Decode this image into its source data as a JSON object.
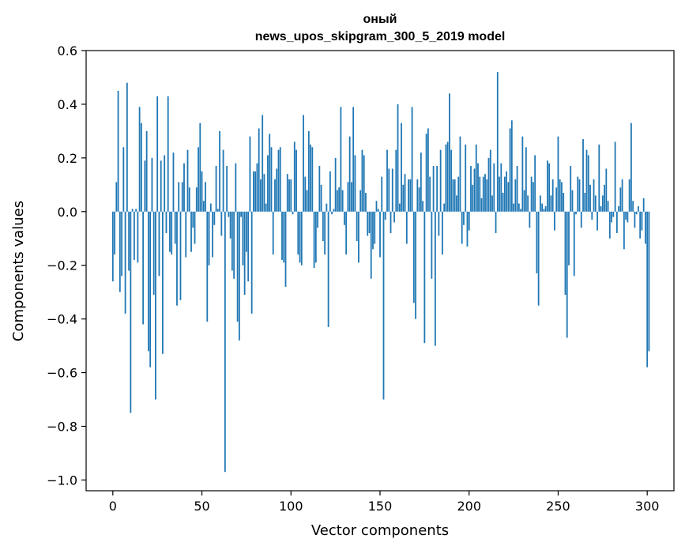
{
  "chart_data": {
    "type": "bar",
    "title": "оный",
    "subtitle": "news_upos_skipgram_300_5_2019 model",
    "xlabel": "Vector components",
    "ylabel": "Components values",
    "xlim": [
      -15,
      315
    ],
    "ylim": [
      -1.04,
      0.6
    ],
    "xticks": [
      0,
      50,
      100,
      150,
      200,
      250,
      300
    ],
    "yticks": [
      0.6,
      0.4,
      0.2,
      0.0,
      -0.2,
      -0.4,
      -0.6,
      -0.8,
      -1.0
    ],
    "xtick_labels": [
      "0",
      "50",
      "100",
      "150",
      "200",
      "250",
      "300"
    ],
    "ytick_labels": [
      "0.6",
      "0.4",
      "0.2",
      "0.0",
      "−0.2",
      "−0.4",
      "−0.6",
      "−0.8",
      "−1.0"
    ],
    "grid": false,
    "color": "#1f77b4",
    "values": [
      -0.26,
      -0.16,
      0.11,
      0.45,
      -0.3,
      -0.24,
      0.24,
      -0.38,
      0.48,
      -0.22,
      -0.75,
      0.01,
      -0.18,
      0.01,
      -0.19,
      0.39,
      0.33,
      -0.42,
      0.19,
      0.3,
      -0.52,
      -0.58,
      0.2,
      -0.31,
      -0.7,
      0.43,
      -0.24,
      0.19,
      -0.53,
      0.21,
      -0.08,
      0.43,
      -0.15,
      -0.16,
      0.22,
      -0.12,
      -0.35,
      0.11,
      -0.33,
      0.11,
      0.18,
      -0.17,
      0.23,
      0.09,
      -0.15,
      -0.06,
      -0.12,
      0.09,
      0.24,
      0.33,
      0.15,
      0.04,
      0.11,
      -0.41,
      -0.2,
      0.03,
      -0.17,
      -0.05,
      0.17,
      0.01,
      0.3,
      -0.09,
      0.23,
      -0.97,
      0.17,
      -0.02,
      -0.1,
      -0.22,
      -0.25,
      0.18,
      -0.41,
      -0.48,
      -0.02,
      -0.2,
      -0.31,
      -0.15,
      -0.26,
      0.28,
      -0.38,
      0.15,
      0.15,
      0.18,
      0.31,
      0.12,
      0.36,
      0.14,
      0.03,
      0.21,
      0.29,
      0.24,
      -0.16,
      0.12,
      0.16,
      0.23,
      0.24,
      -0.18,
      -0.19,
      -0.28,
      0.14,
      0.12,
      0.12,
      -0.01,
      0.26,
      0.23,
      -0.16,
      -0.19,
      -0.2,
      0.36,
      0.13,
      0.08,
      0.3,
      0.25,
      0.24,
      -0.21,
      -0.19,
      -0.06,
      0.17,
      0.1,
      -0.11,
      -0.16,
      0.03,
      -0.43,
      0.15,
      -0.01,
      0.01,
      0.2,
      0.08,
      0.09,
      0.39,
      0.08,
      -0.05,
      -0.16,
      0.11,
      0.28,
      0.11,
      0.39,
      0.21,
      -0.11,
      -0.19,
      0.08,
      0.23,
      0.21,
      0.07,
      -0.09,
      -0.08,
      -0.25,
      -0.14,
      -0.12,
      0.04,
      0.01,
      -0.17,
      0.13,
      -0.7,
      -0.03,
      0.23,
      0.16,
      -0.08,
      0.16,
      -0.04,
      0.23,
      0.4,
      0.03,
      0.33,
      0.1,
      0.14,
      -0.12,
      0.12,
      0.12,
      0.39,
      -0.34,
      -0.4,
      0.12,
      0.09,
      0.22,
      0.04,
      -0.49,
      0.29,
      0.31,
      0.13,
      -0.25,
      0.17,
      -0.5,
      0.17,
      -0.09,
      0.23,
      -0.16,
      0.03,
      0.25,
      0.26,
      0.44,
      0.23,
      0.12,
      0.12,
      0.06,
      0.13,
      0.28,
      -0.12,
      -0.05,
      0.25,
      -0.13,
      -0.07,
      0.17,
      0.1,
      0.16,
      0.25,
      0.18,
      0.13,
      0.05,
      0.13,
      0.14,
      0.12,
      0.2,
      0.23,
      0.06,
      0.18,
      -0.08,
      0.52,
      0.13,
      0.18,
      0.07,
      0.13,
      0.15,
      0.11,
      0.31,
      0.34,
      0.03,
      0.12,
      0.17,
      0.03,
      0.01,
      0.28,
      0.08,
      0.24,
      0.06,
      -0.06,
      0.13,
      0.11,
      0.21,
      -0.23,
      -0.35,
      0.06,
      0.03,
      0.01,
      0.02,
      0.19,
      0.18,
      0.06,
      0.12,
      -0.07,
      0.09,
      0.28,
      0.12,
      0.11,
      0.07,
      -0.31,
      -0.47,
      -0.2,
      0.17,
      0.08,
      -0.24,
      -0.01,
      0.13,
      0.12,
      -0.06,
      0.27,
      0.07,
      0.23,
      0.21,
      0.1,
      -0.03,
      0.12,
      0.06,
      -0.07,
      0.25,
      0.02,
      0.06,
      0.1,
      0.16,
      0.04,
      -0.1,
      -0.04,
      -0.02,
      0.26,
      -0.08,
      0.02,
      0.09,
      0.12,
      -0.14,
      -0.03,
      -0.04,
      0.12,
      0.33,
      0.04,
      -0.06,
      -0.01,
      0.02,
      -0.1,
      -0.07,
      0.05,
      -0.12,
      -0.58,
      -0.52
    ]
  }
}
